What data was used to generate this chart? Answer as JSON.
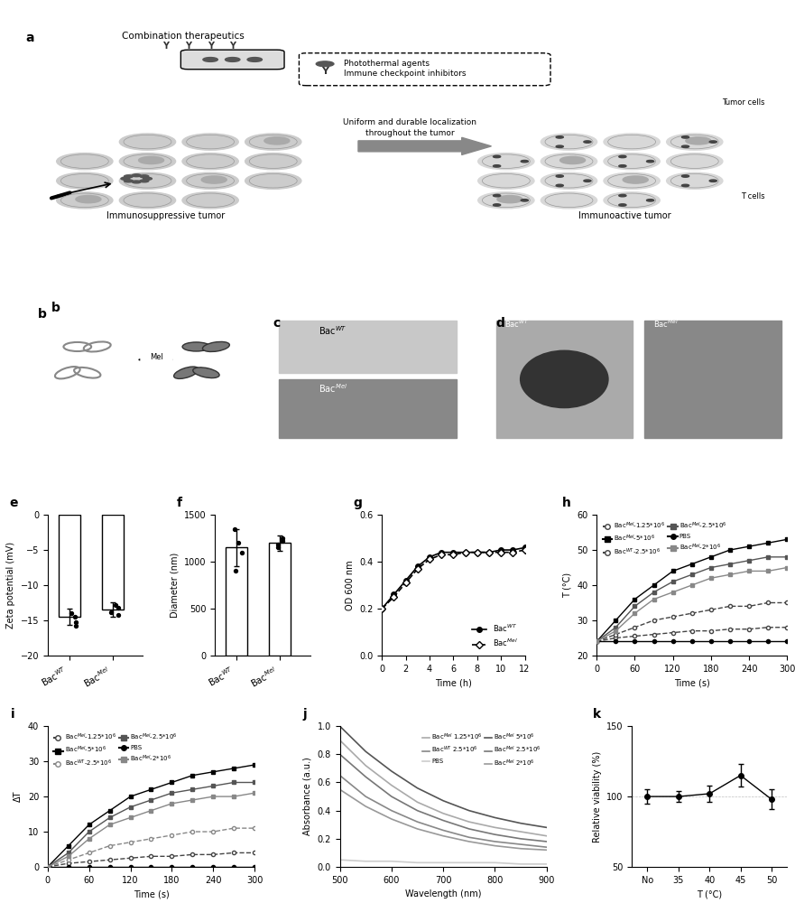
{
  "panel_e": {
    "categories": [
      "Bac$^{WT}$",
      "Bac$^{Mel}$"
    ],
    "values": [
      -14.5,
      -13.5
    ],
    "errors": [
      1.2,
      1.0
    ],
    "ylabel": "Zeta potential (mV)",
    "ylim": [
      -20,
      0
    ],
    "yticks": [
      0,
      -5,
      -10,
      -15,
      -20
    ],
    "scatter_wt": [
      -14.0,
      -14.5,
      -15.2,
      -15.8
    ],
    "scatter_mel": [
      -12.8,
      -13.2,
      -13.8,
      -14.2
    ]
  },
  "panel_f": {
    "categories": [
      "Bac$^{WT}$",
      "Bac$^{Mel}$"
    ],
    "values": [
      1150,
      1200
    ],
    "errors": [
      200,
      80
    ],
    "ylabel": "Diameter (nm)",
    "ylim": [
      0,
      1500
    ],
    "yticks": [
      0,
      500,
      1000,
      1500
    ],
    "scatter_wt": [
      900,
      1100,
      1200,
      1350
    ],
    "scatter_mel": [
      1150,
      1180,
      1220,
      1250
    ]
  },
  "panel_g": {
    "time_wt": [
      0,
      1,
      2,
      3,
      4,
      5,
      6,
      7,
      8,
      9,
      10,
      11,
      12
    ],
    "od_wt": [
      0.2,
      0.26,
      0.32,
      0.38,
      0.42,
      0.44,
      0.44,
      0.44,
      0.44,
      0.44,
      0.45,
      0.45,
      0.46
    ],
    "time_mel": [
      0,
      1,
      2,
      3,
      4,
      5,
      6,
      7,
      8,
      9,
      10,
      11,
      12
    ],
    "od_mel": [
      0.2,
      0.25,
      0.31,
      0.37,
      0.41,
      0.43,
      0.43,
      0.44,
      0.44,
      0.44,
      0.44,
      0.44,
      0.45
    ],
    "xlabel": "Time (h)",
    "ylabel": "OD 600 nm",
    "ylim": [
      0.0,
      0.6
    ],
    "xlim": [
      0,
      12
    ]
  },
  "panel_h": {
    "time": [
      0,
      30,
      60,
      90,
      120,
      150,
      180,
      210,
      240,
      270,
      300
    ],
    "series": {
      "BacMel_1.25e6": [
        24,
        25,
        25.5,
        26,
        26.5,
        27,
        27,
        27.5,
        27.5,
        28,
        28
      ],
      "BacWT_2.5e6": [
        24,
        26,
        28,
        30,
        31,
        32,
        33,
        34,
        34,
        35,
        35
      ],
      "PBS": [
        24,
        24,
        24,
        24,
        24,
        24,
        24,
        24,
        24,
        24,
        24
      ],
      "BacMel_5e6": [
        24,
        30,
        36,
        40,
        44,
        46,
        48,
        50,
        51,
        52,
        53
      ],
      "BacMel_2.5e6": [
        24,
        28,
        34,
        38,
        41,
        43,
        45,
        46,
        47,
        48,
        48
      ],
      "BacMel_2e6": [
        24,
        27,
        32,
        36,
        38,
        40,
        42,
        43,
        44,
        44,
        45
      ]
    },
    "xlabel": "Time (s)",
    "ylabel": "T (°C)",
    "ylim": [
      20,
      60
    ],
    "xlim": [
      0,
      300
    ]
  },
  "panel_i": {
    "time": [
      0,
      30,
      60,
      90,
      120,
      150,
      180,
      210,
      240,
      270,
      300
    ],
    "series": {
      "BacMel_1.25e6": [
        0,
        1,
        1.5,
        2,
        2.5,
        3,
        3,
        3.5,
        3.5,
        4,
        4
      ],
      "BacWT_2.5e6": [
        0,
        2,
        4,
        6,
        7,
        8,
        9,
        10,
        10,
        11,
        11
      ],
      "PBS": [
        0,
        0,
        0,
        0,
        0,
        0,
        0,
        0,
        0,
        0,
        0
      ],
      "BacMel_5e6": [
        0,
        6,
        12,
        16,
        20,
        22,
        24,
        26,
        27,
        28,
        29
      ],
      "BacMel_2.5e6": [
        0,
        4,
        10,
        14,
        17,
        19,
        21,
        22,
        23,
        24,
        24
      ],
      "BacMel_2e6": [
        0,
        3,
        8,
        12,
        14,
        16,
        18,
        19,
        20,
        20,
        21
      ]
    },
    "xlabel": "Time (s)",
    "ylabel": "ΔT",
    "ylim": [
      0,
      40
    ],
    "xlim": [
      0,
      300
    ]
  },
  "panel_j": {
    "wavelength": [
      500,
      550,
      600,
      650,
      700,
      750,
      800,
      850,
      900
    ],
    "series": {
      "BacMel_1.25e6": [
        0.9,
        0.72,
        0.58,
        0.46,
        0.38,
        0.32,
        0.28,
        0.25,
        0.22
      ],
      "BacWT_2.5e6": [
        0.65,
        0.5,
        0.4,
        0.32,
        0.26,
        0.21,
        0.18,
        0.16,
        0.14
      ],
      "PBS": [
        0.05,
        0.04,
        0.04,
        0.03,
        0.03,
        0.03,
        0.03,
        0.02,
        0.02
      ],
      "BacMel_5e6": [
        1.0,
        0.82,
        0.68,
        0.56,
        0.47,
        0.4,
        0.35,
        0.31,
        0.28
      ],
      "BacMel_2.5e6": [
        0.8,
        0.64,
        0.5,
        0.4,
        0.33,
        0.27,
        0.23,
        0.2,
        0.18
      ],
      "BacMel_2e6": [
        0.55,
        0.43,
        0.34,
        0.27,
        0.22,
        0.18,
        0.15,
        0.13,
        0.12
      ]
    },
    "xlabel": "Wavelength (nm)",
    "ylabel": "Absorbance (a.u.)",
    "ylim": [
      0.0,
      1.0
    ],
    "xlim": [
      500,
      900
    ]
  },
  "panel_k": {
    "categories": [
      "No",
      "35",
      "40",
      "45",
      "50"
    ],
    "values": [
      100,
      100,
      102,
      115,
      98
    ],
    "errors": [
      5,
      4,
      6,
      8,
      7
    ],
    "xlabel": "T (°C)",
    "ylabel": "Relative viability (%)",
    "ylim": [
      50,
      150
    ],
    "yticks": [
      50,
      100,
      150
    ]
  },
  "colors": {
    "BacMel_1.25e6_open": "#888888",
    "BacWT_2.5e6_open": "#aaaaaa",
    "PBS_filled": "#000000",
    "BacMel_5e6_filled": "#000000",
    "BacMel_2.5e6_filled": "#555555",
    "BacMel_2e6_filled": "#888888",
    "bar_color": "#ffffff",
    "bar_edge": "#000000",
    "line_gray": "#999999",
    "line_dark": "#333333"
  }
}
